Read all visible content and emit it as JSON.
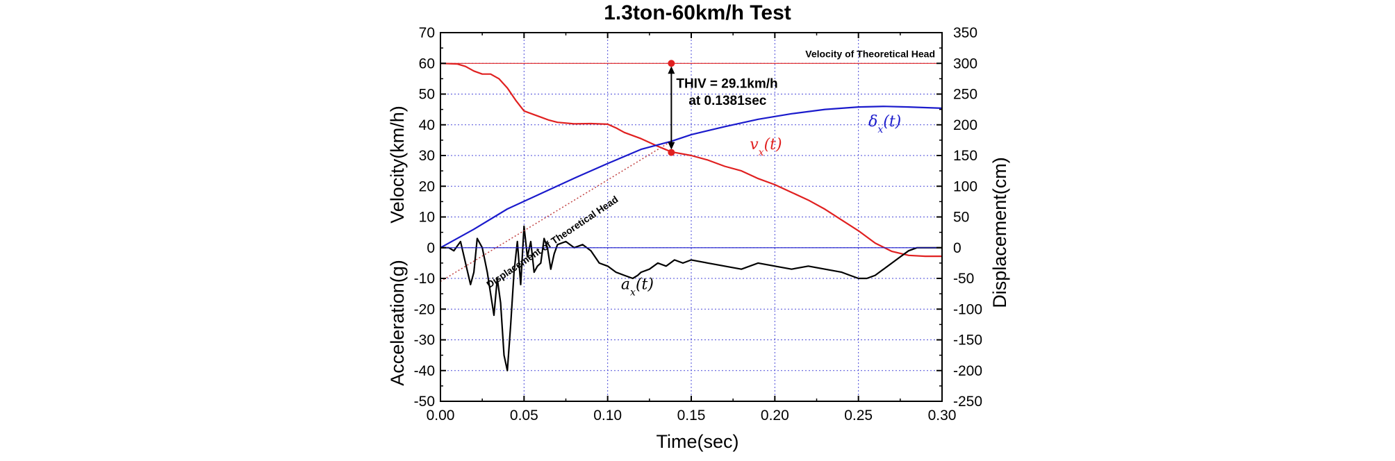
{
  "chart_data": {
    "type": "line",
    "title": "1.3ton-60km/h Test",
    "xlabel": "Time(sec)",
    "ylabel_left_top": "Velocity(km/h)",
    "ylabel_left_bottom": "Acceleration(g)",
    "ylabel_right": "Displacement(cm)",
    "xlim": [
      0.0,
      0.3
    ],
    "ylim_left": [
      -50,
      70
    ],
    "ylim_right": [
      -250,
      350
    ],
    "grid": true,
    "x_ticks": [
      "0.00",
      "0.05",
      "0.10",
      "0.15",
      "0.20",
      "0.25",
      "0.30"
    ],
    "y_left_ticks": [
      "70",
      "60",
      "50",
      "40",
      "30",
      "20",
      "10",
      "0",
      "-10",
      "-20",
      "-30",
      "-40",
      "-50"
    ],
    "y_right_ticks": [
      "350",
      "300",
      "250",
      "200",
      "150",
      "100",
      "50",
      "0",
      "-50",
      "-100",
      "-150",
      "-200",
      "-250"
    ],
    "series": [
      {
        "name": "v_x(t)",
        "label_main": "v",
        "label_sub": "x",
        "label_tail": "(t)",
        "color": "#e02020",
        "axis": "left",
        "x": [
          0.0,
          0.01,
          0.015,
          0.02,
          0.025,
          0.03,
          0.035,
          0.04,
          0.045,
          0.05,
          0.055,
          0.06,
          0.065,
          0.07,
          0.08,
          0.09,
          0.1,
          0.105,
          0.11,
          0.12,
          0.13,
          0.138,
          0.15,
          0.16,
          0.17,
          0.18,
          0.19,
          0.2,
          0.21,
          0.22,
          0.23,
          0.24,
          0.25,
          0.26,
          0.27,
          0.28,
          0.29,
          0.3
        ],
        "y": [
          60.0,
          59.8,
          59.0,
          57.5,
          56.5,
          56.5,
          55.0,
          52.0,
          48.0,
          44.5,
          43.5,
          42.5,
          41.5,
          40.8,
          40.3,
          40.4,
          40.2,
          39.0,
          37.5,
          35.5,
          33.0,
          31.2,
          30.0,
          28.5,
          26.5,
          25.0,
          22.5,
          20.5,
          18.0,
          15.5,
          12.5,
          9.0,
          5.5,
          1.5,
          -1.2,
          -2.5,
          -2.8,
          -2.8
        ]
      },
      {
        "name": "δ_x(t)",
        "label_main": "δ",
        "label_sub": "x",
        "label_tail": "(t)",
        "color": "#1a1acc",
        "axis": "right",
        "x": [
          0.0,
          0.02,
          0.04,
          0.06,
          0.08,
          0.1,
          0.12,
          0.138,
          0.15,
          0.17,
          0.19,
          0.21,
          0.23,
          0.25,
          0.265,
          0.28,
          0.3
        ],
        "y": [
          0,
          30,
          63,
          88,
          113,
          137,
          160,
          173,
          184,
          197,
          209,
          218,
          225,
          229,
          230,
          229,
          227
        ]
      },
      {
        "name": "a_x(t)",
        "label_main": "a",
        "label_sub": "x",
        "label_tail": "(t)",
        "color": "#000000",
        "axis": "left",
        "x": [
          0.0,
          0.005,
          0.008,
          0.012,
          0.015,
          0.018,
          0.02,
          0.022,
          0.025,
          0.028,
          0.03,
          0.032,
          0.034,
          0.036,
          0.038,
          0.04,
          0.042,
          0.044,
          0.046,
          0.048,
          0.05,
          0.052,
          0.054,
          0.056,
          0.058,
          0.06,
          0.062,
          0.064,
          0.066,
          0.068,
          0.07,
          0.075,
          0.08,
          0.085,
          0.09,
          0.095,
          0.1,
          0.105,
          0.11,
          0.115,
          0.118,
          0.12,
          0.125,
          0.13,
          0.135,
          0.14,
          0.145,
          0.15,
          0.16,
          0.17,
          0.18,
          0.19,
          0.2,
          0.21,
          0.22,
          0.23,
          0.24,
          0.245,
          0.25,
          0.255,
          0.26,
          0.265,
          0.27,
          0.275,
          0.28,
          0.285,
          0.29,
          0.295,
          0.3
        ],
        "y": [
          0,
          0,
          -1,
          2,
          -5,
          -12,
          -8,
          3,
          0,
          -8,
          -15,
          -22,
          -10,
          -18,
          -35,
          -40,
          -25,
          -8,
          2,
          -12,
          7,
          -3,
          2,
          -8,
          -6,
          -5,
          3,
          0,
          -7,
          -2,
          1,
          2,
          0,
          1,
          -1,
          -5,
          -6,
          -8,
          -9,
          -10,
          -9,
          -8,
          -7,
          -5,
          -6,
          -4,
          -5,
          -4,
          -5,
          -6,
          -7,
          -5,
          -6,
          -7,
          -6,
          -7,
          -8,
          -9,
          -10,
          -10,
          -9,
          -7,
          -5,
          -3,
          -1,
          0,
          0,
          0,
          0
        ]
      },
      {
        "name": "Displacement of Theoretical Head",
        "color": "#c04040",
        "style": "dotted",
        "axis": "right",
        "x": [
          0.0,
          0.138
        ],
        "y": [
          -55,
          173
        ]
      },
      {
        "name": "Velocity of Theoretical Head",
        "color": "#e02020",
        "style": "thin",
        "axis": "left",
        "x": [
          0.0,
          0.3
        ],
        "y": [
          60,
          60
        ]
      },
      {
        "name": "baseline",
        "color": "#1a1acc",
        "style": "thin",
        "axis": "left",
        "x": [
          0.0,
          0.3
        ],
        "y": [
          0,
          0
        ]
      }
    ],
    "annotations": {
      "thiv_line1": "THIV = 29.1km/h",
      "thiv_line2": "at 0.1381sec",
      "thiv_time": 0.1381,
      "thiv_top_value": 60,
      "thiv_bottom_value": 31,
      "velocity_head_label": "Velocity of Theoretical Head",
      "displacement_head_label": "Displacement of Theoretical Head"
    }
  }
}
